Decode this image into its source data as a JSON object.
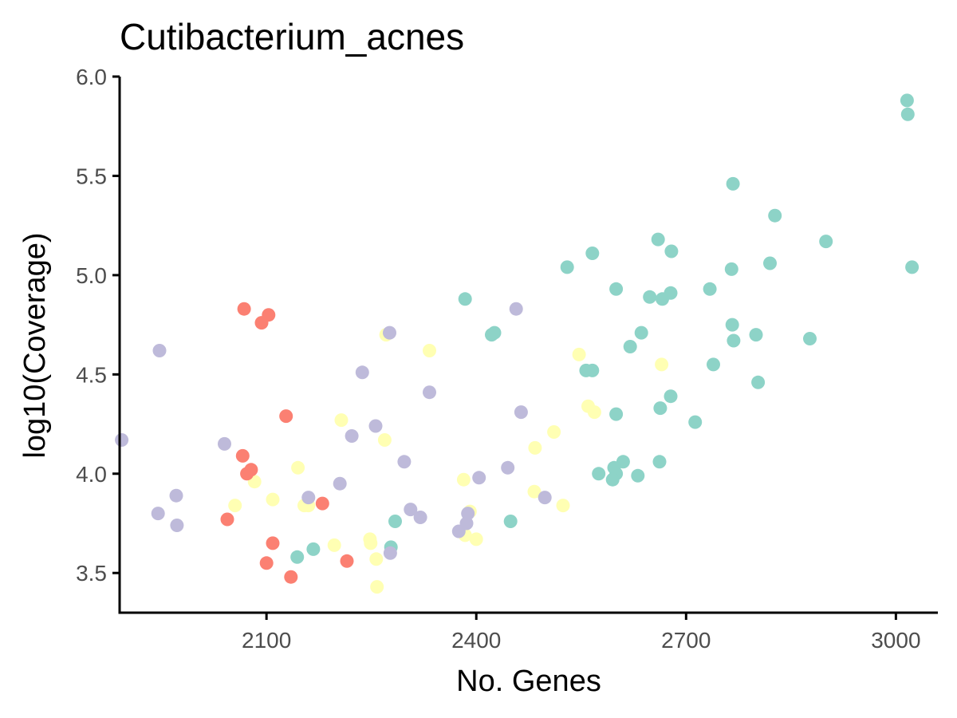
{
  "chart_data": {
    "type": "scatter",
    "title": "Cutibacterium_acnes",
    "xlabel": "No. Genes",
    "ylabel": "log10(Coverage)",
    "xlim": [
      1890,
      3060
    ],
    "ylim": [
      3.3,
      6.0
    ],
    "x_ticks": [
      2100,
      2400,
      2700,
      3000
    ],
    "x_tick_labels": [
      "2100",
      "2400",
      "2700",
      "3000"
    ],
    "y_ticks": [
      3.5,
      4.0,
      4.5,
      5.0,
      5.5,
      6.0
    ],
    "y_tick_labels": [
      "3.5",
      "4.0",
      "4.5",
      "5.0",
      "5.5",
      "6.0"
    ],
    "grid": false,
    "legend": "none",
    "series": [
      {
        "color": "#8DD3C7",
        "points": [
          [
            3016,
            5.88
          ],
          [
            3017,
            5.81
          ],
          [
            2767,
            5.46
          ],
          [
            2827,
            5.3
          ],
          [
            2900,
            5.17
          ],
          [
            2820,
            5.06
          ],
          [
            3023,
            5.04
          ],
          [
            2660,
            5.18
          ],
          [
            2679,
            5.12
          ],
          [
            2566,
            5.11
          ],
          [
            2530,
            5.04
          ],
          [
            2765,
            5.03
          ],
          [
            2600,
            4.93
          ],
          [
            2648,
            4.89
          ],
          [
            2666,
            4.88
          ],
          [
            2678,
            4.91
          ],
          [
            2734,
            4.93
          ],
          [
            2384,
            4.88
          ],
          [
            2422,
            4.7
          ],
          [
            2426,
            4.71
          ],
          [
            2766,
            4.75
          ],
          [
            2768,
            4.67
          ],
          [
            2800,
            4.7
          ],
          [
            2877,
            4.68
          ],
          [
            2636,
            4.71
          ],
          [
            2620,
            4.64
          ],
          [
            2739,
            4.55
          ],
          [
            2557,
            4.52
          ],
          [
            2566,
            4.52
          ],
          [
            2803,
            4.46
          ],
          [
            2678,
            4.39
          ],
          [
            2663,
            4.33
          ],
          [
            2600,
            4.3
          ],
          [
            2713,
            4.26
          ],
          [
            2610,
            4.06
          ],
          [
            2662,
            4.06
          ],
          [
            2597,
            4.03
          ],
          [
            2600,
            4.0
          ],
          [
            2575,
            4.0
          ],
          [
            2631,
            3.99
          ],
          [
            2595,
            3.97
          ],
          [
            2284,
            3.76
          ],
          [
            2449,
            3.76
          ],
          [
            2278,
            3.63
          ],
          [
            2167,
            3.62
          ],
          [
            2144,
            3.58
          ]
        ]
      },
      {
        "color": "#FFFFB3",
        "points": [
          [
            2271,
            4.7
          ],
          [
            2333,
            4.62
          ],
          [
            2547,
            4.6
          ],
          [
            2665,
            4.55
          ],
          [
            2560,
            4.34
          ],
          [
            2569,
            4.31
          ],
          [
            2207,
            4.27
          ],
          [
            2511,
            4.21
          ],
          [
            2269,
            4.17
          ],
          [
            2484,
            4.13
          ],
          [
            2145,
            4.03
          ],
          [
            2083,
            3.96
          ],
          [
            2382,
            3.97
          ],
          [
            2483,
            3.91
          ],
          [
            2109,
            3.87
          ],
          [
            2160,
            3.84
          ],
          [
            2154,
            3.84
          ],
          [
            2524,
            3.84
          ],
          [
            2055,
            3.84
          ],
          [
            2391,
            3.81
          ],
          [
            2384,
            3.69
          ],
          [
            2400,
            3.67
          ],
          [
            2197,
            3.64
          ],
          [
            2248,
            3.67
          ],
          [
            2249,
            3.65
          ],
          [
            2257,
            3.57
          ],
          [
            2258,
            3.43
          ]
        ]
      },
      {
        "color": "#BEBADA",
        "points": [
          [
            1947,
            4.62
          ],
          [
            2276,
            4.71
          ],
          [
            2457,
            4.83
          ],
          [
            2237,
            4.51
          ],
          [
            2333,
            4.41
          ],
          [
            2464,
            4.31
          ],
          [
            2256,
            4.24
          ],
          [
            2222,
            4.19
          ],
          [
            1893,
            4.17
          ],
          [
            2040,
            4.15
          ],
          [
            2297,
            4.06
          ],
          [
            2445,
            4.03
          ],
          [
            2404,
            3.98
          ],
          [
            2205,
            3.95
          ],
          [
            1971,
            3.89
          ],
          [
            2160,
            3.88
          ],
          [
            2498,
            3.88
          ],
          [
            2306,
            3.82
          ],
          [
            1945,
            3.8
          ],
          [
            2388,
            3.8
          ],
          [
            2320,
            3.78
          ],
          [
            1972,
            3.74
          ],
          [
            2386,
            3.75
          ],
          [
            2375,
            3.71
          ],
          [
            2277,
            3.6
          ]
        ]
      },
      {
        "color": "#FB8072",
        "points": [
          [
            2068,
            4.83
          ],
          [
            2103,
            4.8
          ],
          [
            2093,
            4.76
          ],
          [
            2128,
            4.29
          ],
          [
            2066,
            4.09
          ],
          [
            2078,
            4.02
          ],
          [
            2072,
            4.0
          ],
          [
            2180,
            3.85
          ],
          [
            2044,
            3.77
          ],
          [
            2109,
            3.65
          ],
          [
            2215,
            3.56
          ],
          [
            2100,
            3.55
          ],
          [
            2135,
            3.48
          ]
        ]
      }
    ]
  }
}
